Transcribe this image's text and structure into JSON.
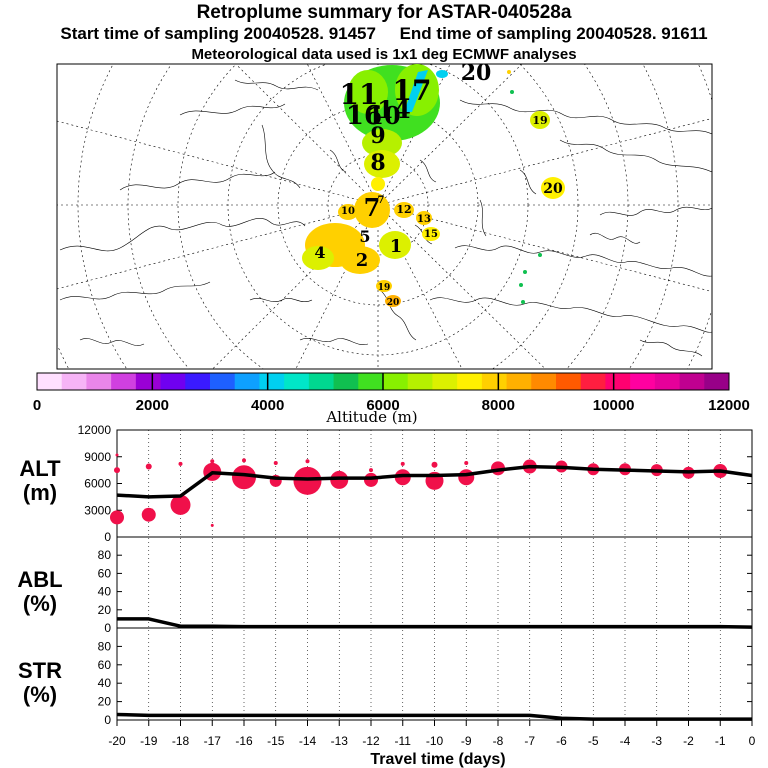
{
  "header": {
    "title": "Retroplume summary for ASTAR-040528a",
    "line2": "Start time of sampling 20040528. 91457     End time of sampling 20040528. 91611",
    "line3": "Meteorological data used is 1x1 deg ECMWF analyses"
  },
  "map": {
    "plume_labels": [
      "1",
      "2",
      "4",
      "5",
      "7",
      "8",
      "9",
      "10",
      "11",
      "12",
      "13",
      "14",
      "15",
      "16",
      "17",
      "19",
      "20"
    ]
  },
  "colorbar": {
    "title": "Altitude (m)",
    "ticks": [
      "0",
      "2000",
      "4000",
      "6000",
      "8000",
      "10000",
      "12000"
    ],
    "colors": [
      "#ffe0ff",
      "#f6b4f6",
      "#ea86ea",
      "#d040e0",
      "#9a00d6",
      "#7000f0",
      "#3a1aff",
      "#1e60ff",
      "#0ea0ff",
      "#00d0f0",
      "#00e6c8",
      "#00d890",
      "#10c050",
      "#40e020",
      "#88f000",
      "#b6f000",
      "#dcf000",
      "#fff000",
      "#ffd000",
      "#ffb000",
      "#ff8a00",
      "#ff5a00",
      "#ff1e40",
      "#ff0070",
      "#ff00a0",
      "#e6009a",
      "#c00090",
      "#980088"
    ]
  },
  "chart_data": [
    {
      "type": "line",
      "name": "ALT",
      "label_line1": "ALT",
      "label_line2": "(m)",
      "x": [
        -20,
        -19,
        -18,
        -17,
        -16,
        -15,
        -14,
        -13,
        -12,
        -11,
        -10,
        -9,
        -8,
        -7,
        -6,
        -5,
        -4,
        -3,
        -2,
        -1,
        0
      ],
      "y": [
        4700,
        4500,
        4600,
        7200,
        7000,
        6600,
        6500,
        6600,
        6600,
        6900,
        6900,
        7000,
        7500,
        7900,
        7800,
        7600,
        7500,
        7400,
        7300,
        7400,
        6900
      ],
      "ylim": [
        0,
        12000
      ],
      "yticks": [
        "12000",
        "9000",
        "6000",
        "3000",
        "0"
      ],
      "scatter": [
        {
          "x": -20,
          "y": 2200,
          "s": 7
        },
        {
          "x": -19,
          "y": 2500,
          "s": 7
        },
        {
          "x": -18,
          "y": 3600,
          "s": 10
        },
        {
          "x": -17,
          "y": 7300,
          "s": 9
        },
        {
          "x": -16,
          "y": 6700,
          "s": 12
        },
        {
          "x": -15,
          "y": 6300,
          "s": 6
        },
        {
          "x": -14,
          "y": 6300,
          "s": 14
        },
        {
          "x": -13,
          "y": 6400,
          "s": 9
        },
        {
          "x": -12,
          "y": 6400,
          "s": 7
        },
        {
          "x": -11,
          "y": 6700,
          "s": 8
        },
        {
          "x": -10,
          "y": 6300,
          "s": 9
        },
        {
          "x": -9,
          "y": 6700,
          "s": 8
        },
        {
          "x": -8,
          "y": 7700,
          "s": 7
        },
        {
          "x": -7,
          "y": 7900,
          "s": 7
        },
        {
          "x": -6,
          "y": 7900,
          "s": 6
        },
        {
          "x": -5,
          "y": 7600,
          "s": 6
        },
        {
          "x": -4,
          "y": 7600,
          "s": 6
        },
        {
          "x": -3,
          "y": 7500,
          "s": 6
        },
        {
          "x": -2,
          "y": 7200,
          "s": 6
        },
        {
          "x": -1,
          "y": 7400,
          "s": 7
        },
        {
          "x": -20,
          "y": 7500,
          "s": 3
        },
        {
          "x": -19,
          "y": 7900,
          "s": 3
        },
        {
          "x": -18,
          "y": 8200,
          "s": 2
        },
        {
          "x": -17,
          "y": 8500,
          "s": 2
        },
        {
          "x": -16,
          "y": 8600,
          "s": 2
        },
        {
          "x": -15,
          "y": 8300,
          "s": 2
        },
        {
          "x": -14,
          "y": 8500,
          "s": 2
        },
        {
          "x": -12,
          "y": 7500,
          "s": 2
        },
        {
          "x": -11,
          "y": 8200,
          "s": 2
        },
        {
          "x": -10,
          "y": 8100,
          "s": 3
        },
        {
          "x": -9,
          "y": 8300,
          "s": 2
        },
        {
          "x": -17,
          "y": 1300,
          "s": 1.5
        },
        {
          "x": -20,
          "y": 9200,
          "s": 1.5
        }
      ],
      "xlabel": "",
      "ylabel": "ALT (m)"
    },
    {
      "type": "line",
      "name": "ABL",
      "label_line1": "ABL",
      "label_line2": "(%)",
      "x": [
        -20,
        -19,
        -18,
        -17,
        -16,
        -15,
        -14,
        -13,
        -12,
        -11,
        -10,
        -9,
        -8,
        -7,
        -6,
        -5,
        -4,
        -3,
        -2,
        -1,
        0
      ],
      "y": [
        10,
        10,
        2,
        2,
        1.5,
        1.5,
        1.5,
        1.5,
        1.5,
        1.5,
        1.5,
        1.5,
        1.5,
        1.5,
        1.5,
        1.5,
        1.5,
        1.5,
        1.5,
        1.5,
        1
      ],
      "ylim": [
        0,
        100
      ],
      "yticks": [
        "80",
        "60",
        "40",
        "20",
        "0"
      ],
      "xlabel": "",
      "ylabel": "ABL (%)"
    },
    {
      "type": "line",
      "name": "STR",
      "label_line1": "STR",
      "label_line2": "(%)",
      "x": [
        -20,
        -19,
        -18,
        -17,
        -16,
        -15,
        -14,
        -13,
        -12,
        -11,
        -10,
        -9,
        -8,
        -7,
        -6,
        -5,
        -4,
        -3,
        -2,
        -1,
        0
      ],
      "y": [
        6,
        5,
        5,
        5,
        5,
        5,
        5,
        5,
        5,
        5,
        5,
        5,
        5,
        5,
        2,
        1,
        1,
        1,
        1,
        1,
        1
      ],
      "ylim": [
        0,
        100
      ],
      "yticks": [
        "80",
        "60",
        "40",
        "20",
        "0"
      ],
      "xlabel": "Travel time (days)",
      "ylabel": "STR (%)",
      "xticks": [
        "-20",
        "-19",
        "-18",
        "-17",
        "-16",
        "-15",
        "-14",
        "-13",
        "-12",
        "-11",
        "-10",
        "-9",
        "-8",
        "-7",
        "-6",
        "-5",
        "-4",
        "-3",
        "-2",
        "-1",
        "0"
      ]
    }
  ],
  "xaxis": {
    "label": "Travel time (days)",
    "ticks": [
      "-20",
      "-19",
      "-18",
      "-17",
      "-16",
      "-15",
      "-14",
      "-13",
      "-12",
      "-11",
      "-10",
      "-9",
      "-8",
      "-7",
      "-6",
      "-5",
      "-4",
      "-3",
      "-2",
      "-1",
      "0"
    ]
  }
}
